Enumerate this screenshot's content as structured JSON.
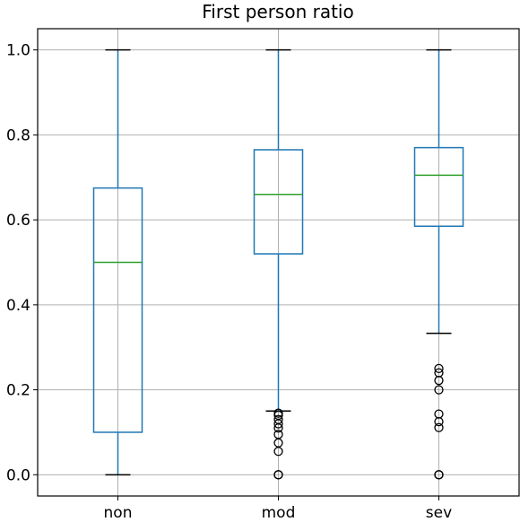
{
  "chart_data": {
    "type": "box",
    "title": "First person ratio",
    "xlabel": "",
    "ylabel": "",
    "categories": [
      "non",
      "mod",
      "sev"
    ],
    "ylim": [
      -0.05,
      1.05
    ],
    "yticks": [
      0.0,
      0.2,
      0.4,
      0.6,
      0.8,
      1.0
    ],
    "ytick_labels": [
      "0.0",
      "0.2",
      "0.4",
      "0.6",
      "0.8",
      "1.0"
    ],
    "grid": true,
    "box_color": "#1f77b4",
    "median_color": "#2ca02c",
    "boxes": [
      {
        "category": "non",
        "whisker_low": 0.0,
        "q1": 0.1,
        "median": 0.5,
        "q3": 0.675,
        "whisker_high": 1.0,
        "outliers": []
      },
      {
        "category": "mod",
        "whisker_low": 0.15,
        "q1": 0.52,
        "median": 0.66,
        "q3": 0.765,
        "whisker_high": 1.0,
        "outliers": [
          0.0,
          0.0,
          0.055,
          0.075,
          0.095,
          0.11,
          0.12,
          0.13,
          0.14,
          0.145
        ]
      },
      {
        "category": "sev",
        "whisker_low": 0.333,
        "q1": 0.585,
        "median": 0.705,
        "q3": 0.77,
        "whisker_high": 1.0,
        "outliers": [
          0.0,
          0.0,
          0.111,
          0.125,
          0.143,
          0.2,
          0.222,
          0.24,
          0.25
        ]
      }
    ]
  }
}
